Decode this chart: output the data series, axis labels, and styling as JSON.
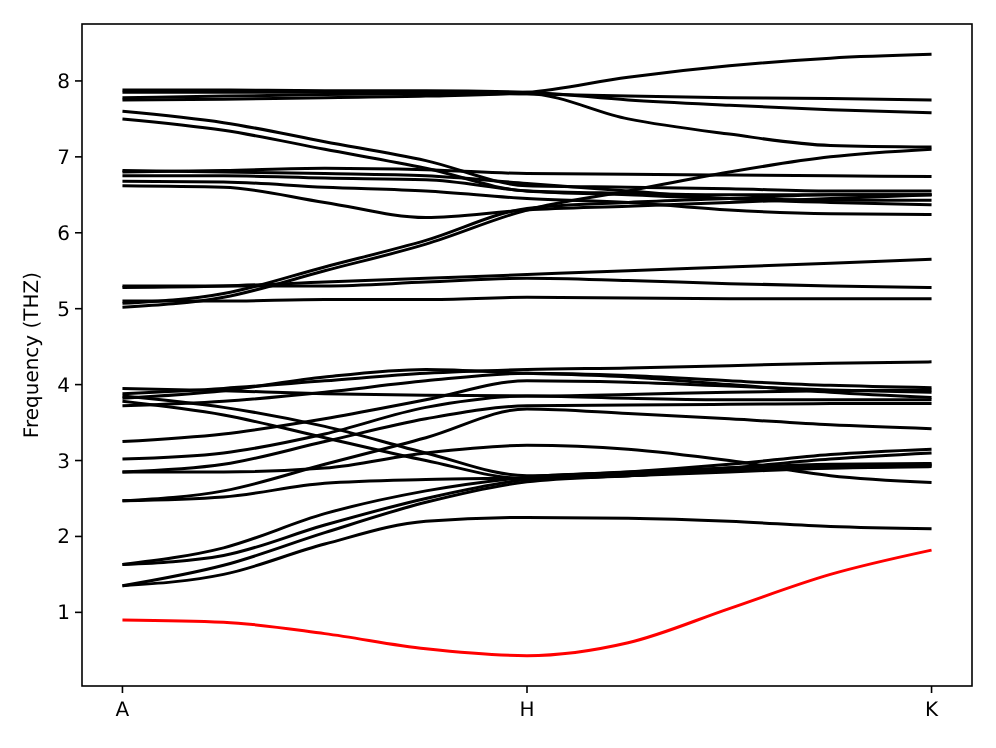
{
  "chart_data": {
    "type": "line",
    "ylabel": "Frequency (THZ)",
    "categories": [
      "A",
      null,
      null,
      null,
      "H",
      null,
      null,
      null,
      "K"
    ],
    "ylim": [
      0.03,
      8.75
    ],
    "yticks": [
      1,
      2,
      3,
      4,
      5,
      6,
      7,
      8
    ],
    "grid": false,
    "series": [
      {
        "color": "#ff0000",
        "values": [
          0.9,
          0.87,
          0.72,
          0.52,
          0.43,
          0.6,
          1.05,
          1.5,
          1.82
        ]
      },
      {
        "color": "#000000",
        "values": [
          1.35,
          1.5,
          1.9,
          2.2,
          2.25,
          2.24,
          2.2,
          2.13,
          2.1
        ]
      },
      {
        "color": "#000000",
        "values": [
          1.35,
          1.62,
          2.05,
          2.45,
          2.72,
          2.8,
          2.87,
          2.9,
          2.92
        ]
      },
      {
        "color": "#000000",
        "values": [
          1.63,
          1.75,
          2.15,
          2.5,
          2.75,
          2.82,
          2.9,
          2.95,
          2.96
        ]
      },
      {
        "color": "#000000",
        "values": [
          1.63,
          1.85,
          2.3,
          2.6,
          2.78,
          2.85,
          2.95,
          3.08,
          3.15
        ]
      },
      {
        "color": "#000000",
        "values": [
          2.47,
          2.52,
          2.7,
          2.75,
          2.77,
          2.8,
          2.9,
          3.02,
          3.1
        ]
      },
      {
        "color": "#000000",
        "values": [
          2.47,
          2.6,
          2.95,
          3.3,
          3.68,
          3.62,
          3.55,
          3.47,
          3.42
        ]
      },
      {
        "color": "#000000",
        "values": [
          2.85,
          2.85,
          2.9,
          3.1,
          3.2,
          3.15,
          3,
          2.8,
          2.71
        ]
      },
      {
        "color": "#000000",
        "values": [
          2.85,
          2.95,
          3.25,
          3.55,
          3.72,
          3.73,
          3.74,
          3.75,
          3.75
        ]
      },
      {
        "color": "#000000",
        "values": [
          3.02,
          3.1,
          3.35,
          3.7,
          3.85,
          3.82,
          3.8,
          3.8,
          3.8
        ]
      },
      {
        "color": "#000000",
        "values": [
          3.25,
          3.35,
          3.55,
          3.8,
          4.05,
          4.03,
          3.98,
          3.93,
          3.9
        ]
      },
      {
        "color": "#000000",
        "values": [
          3.78,
          3.6,
          3.3,
          3,
          2.76,
          2.8,
          2.85,
          2.9,
          2.93
        ]
      },
      {
        "color": "#000000",
        "values": [
          3.85,
          3.7,
          3.45,
          3.1,
          2.8,
          2.85,
          2.9,
          2.93,
          2.95
        ]
      },
      {
        "color": "#000000",
        "values": [
          3.72,
          3.78,
          3.9,
          4.05,
          4.15,
          4.12,
          4.05,
          3.99,
          3.96
        ]
      },
      {
        "color": "#000000",
        "values": [
          3.88,
          3.95,
          4.05,
          4.15,
          4.2,
          4.22,
          4.25,
          4.28,
          4.3
        ]
      },
      {
        "color": "#000000",
        "values": [
          3.95,
          3.92,
          3.88,
          3.86,
          3.85,
          3.87,
          3.9,
          3.92,
          3.93
        ]
      },
      {
        "color": "#000000",
        "values": [
          3.82,
          3.92,
          4.1,
          4.2,
          4.15,
          4.1,
          4,
          3.9,
          3.83
        ]
      },
      {
        "color": "#000000",
        "values": [
          5.02,
          5.15,
          5.5,
          5.85,
          6.3,
          6.55,
          6.8,
          7,
          7.1
        ]
      },
      {
        "color": "#000000",
        "values": [
          5.07,
          5.2,
          5.55,
          5.9,
          6.32,
          6.4,
          6.45,
          6.5,
          6.5
        ]
      },
      {
        "color": "#000000",
        "values": [
          5.28,
          5.3,
          5.35,
          5.4,
          5.45,
          5.5,
          5.55,
          5.6,
          5.65
        ]
      },
      {
        "color": "#000000",
        "values": [
          5.3,
          5.3,
          5.3,
          5.35,
          5.4,
          5.37,
          5.33,
          5.3,
          5.28
        ]
      },
      {
        "color": "#000000",
        "values": [
          5.1,
          5.1,
          5.12,
          5.12,
          5.15,
          5.14,
          5.13,
          5.13,
          5.13
        ]
      },
      {
        "color": "#000000",
        "values": [
          6.62,
          6.6,
          6.4,
          6.2,
          6.3,
          6.35,
          6.4,
          6.45,
          6.5
        ]
      },
      {
        "color": "#000000",
        "values": [
          6.68,
          6.67,
          6.6,
          6.55,
          6.45,
          6.4,
          6.3,
          6.25,
          6.24
        ]
      },
      {
        "color": "#000000",
        "values": [
          6.75,
          6.75,
          6.72,
          6.7,
          6.55,
          6.5,
          6.45,
          6.43,
          6.43
        ]
      },
      {
        "color": "#000000",
        "values": [
          6.8,
          6.82,
          6.85,
          6.83,
          6.78,
          6.77,
          6.76,
          6.75,
          6.74
        ]
      },
      {
        "color": "#000000",
        "values": [
          6.82,
          6.8,
          6.78,
          6.75,
          6.65,
          6.55,
          6.45,
          6.4,
          6.37
        ]
      },
      {
        "color": "#000000",
        "values": [
          7.5,
          7.35,
          7.1,
          6.85,
          6.55,
          6.52,
          6.5,
          6.5,
          6.5
        ]
      },
      {
        "color": "#000000",
        "values": [
          7.6,
          7.45,
          7.2,
          6.95,
          6.62,
          6.6,
          6.58,
          6.55,
          6.55
        ]
      },
      {
        "color": "#000000",
        "values": [
          7.78,
          7.8,
          7.82,
          7.83,
          7.83,
          7.5,
          7.3,
          7.15,
          7.13
        ]
      },
      {
        "color": "#000000",
        "values": [
          7.85,
          7.85,
          7.85,
          7.85,
          7.83,
          7.8,
          7.78,
          7.77,
          7.75
        ]
      },
      {
        "color": "#000000",
        "values": [
          7.88,
          7.88,
          7.87,
          7.87,
          7.85,
          7.75,
          7.68,
          7.62,
          7.58
        ]
      },
      {
        "color": "#000000",
        "values": [
          7.75,
          7.76,
          7.78,
          7.8,
          7.85,
          8.05,
          8.2,
          8.3,
          8.35
        ]
      }
    ]
  }
}
